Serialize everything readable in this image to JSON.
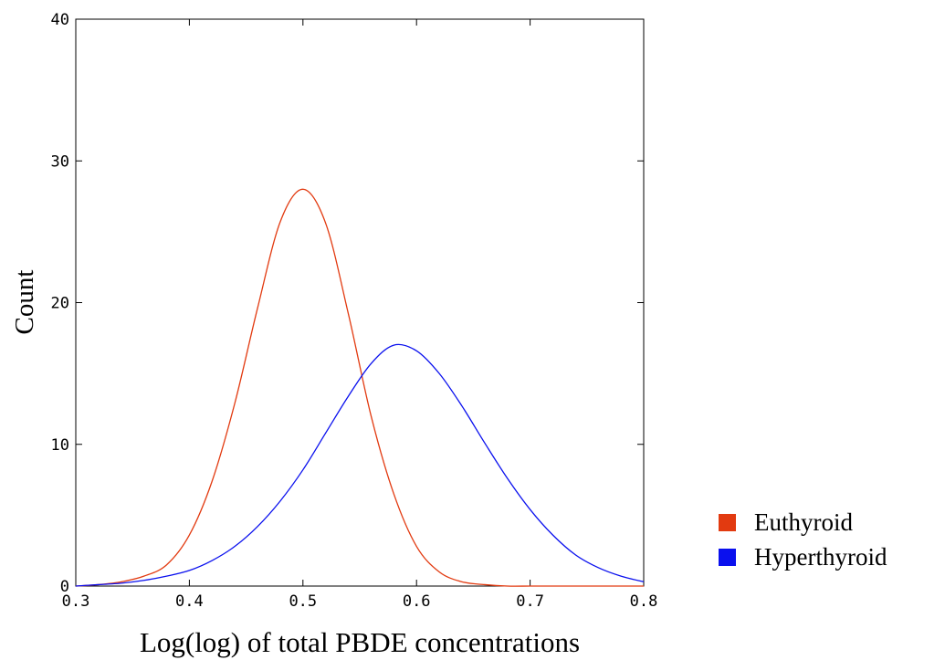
{
  "chart_data": {
    "type": "line",
    "title": "",
    "xlabel": "Log(log) of total PBDE concentrations",
    "ylabel": "Count",
    "xlim": [
      0.3,
      0.8
    ],
    "ylim": [
      0,
      40
    ],
    "x_ticks": [
      "0.3",
      "0.4",
      "0.5",
      "0.6",
      "0.7",
      "0.8"
    ],
    "y_ticks": [
      "0",
      "10",
      "20",
      "30",
      "40"
    ],
    "grid": false,
    "legend_position": "right",
    "series": [
      {
        "name": "Euthyroid",
        "color": "#e23a10",
        "legend_color": "#e23a10",
        "x": [
          0.3,
          0.32,
          0.34,
          0.36,
          0.38,
          0.4,
          0.42,
          0.44,
          0.46,
          0.48,
          0.5,
          0.52,
          0.54,
          0.56,
          0.58,
          0.6,
          0.62,
          0.64,
          0.66,
          0.68,
          0.7,
          0.72,
          0.74,
          0.76,
          0.78,
          0.8
        ],
        "y": [
          0.0,
          0.1,
          0.3,
          0.7,
          1.5,
          3.6,
          7.4,
          12.9,
          19.6,
          25.7,
          28.0,
          25.6,
          19.2,
          12.0,
          6.5,
          2.8,
          1.0,
          0.3,
          0.1,
          0.0,
          0.0,
          0.0,
          0.0,
          0.0,
          0.0,
          0.0
        ]
      },
      {
        "name": "Hyperthyroid",
        "color": "#0a10ee",
        "legend_color": "#0a10ee",
        "x": [
          0.3,
          0.32,
          0.34,
          0.36,
          0.38,
          0.4,
          0.42,
          0.44,
          0.46,
          0.48,
          0.5,
          0.52,
          0.54,
          0.56,
          0.58,
          0.6,
          0.62,
          0.64,
          0.66,
          0.68,
          0.7,
          0.72,
          0.74,
          0.76,
          0.78,
          0.8
        ],
        "y": [
          0.0,
          0.1,
          0.2,
          0.4,
          0.7,
          1.1,
          1.8,
          2.8,
          4.2,
          6.0,
          8.2,
          10.8,
          13.4,
          15.7,
          17.0,
          16.6,
          15.0,
          12.7,
          10.1,
          7.6,
          5.4,
          3.6,
          2.2,
          1.3,
          0.7,
          0.3
        ]
      }
    ]
  }
}
